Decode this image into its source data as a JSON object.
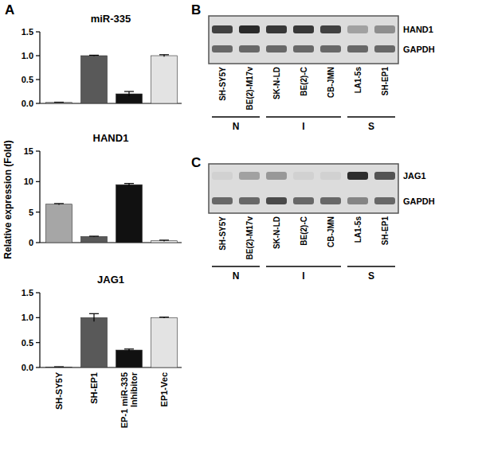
{
  "panel_labels": [
    "A",
    "B",
    "C"
  ],
  "chart_data": [
    {
      "type": "bar",
      "title": "miR-335",
      "categories": [
        null,
        null,
        null,
        null
      ],
      "values": [
        0.02,
        1.0,
        0.2,
        1.0
      ],
      "errors": [
        0.005,
        0.01,
        0.05,
        0.02
      ],
      "colors": [
        "#a6a6a6",
        "#595959",
        "#111111",
        "#e3e3e3"
      ],
      "ylim": [
        0,
        1.5
      ],
      "yticks": [
        {
          "value": 0,
          "label": "0.0"
        },
        0.5,
        {
          "value": 1,
          "label": "1.0"
        },
        1.5
      ],
      "grid": false
    },
    {
      "type": "bar",
      "title": "HAND1",
      "y_label": "Relative expression (Fold)",
      "categories": [
        null,
        null,
        null,
        null
      ],
      "values": [
        6.3,
        1.0,
        9.5,
        0.3
      ],
      "errors": [
        0.1,
        0.05,
        0.2,
        0.1
      ],
      "colors": [
        "#a6a6a6",
        "#595959",
        "#111111",
        "#e3e3e3"
      ],
      "ylim": [
        0,
        15
      ],
      "yticks": [
        0,
        5,
        10,
        15
      ],
      "grid": false
    },
    {
      "type": "bar",
      "title": "JAG1",
      "categories": [
        "SH-SY5Y",
        "SH-EP1",
        "EP-1 miR-335 Inhibitor",
        "EP1-Vec"
      ],
      "values": [
        0.01,
        1.0,
        0.35,
        1.0
      ],
      "errors": [
        0.005,
        0.08,
        0.02,
        0.01
      ],
      "colors": [
        "#a6a6a6",
        "#595959",
        "#111111",
        "#e3e3e3"
      ],
      "ylim": [
        0,
        1.5
      ],
      "yticks": [
        {
          "value": 0,
          "label": "0.0"
        },
        0.5,
        {
          "value": 1,
          "label": "1.0"
        },
        1.5
      ],
      "grid": false
    }
  ],
  "gels": [
    {
      "lanes": [
        "SH-SY5Y",
        "BE(2)-M17v",
        "SK-N-LD",
        "BE(2)-C",
        "CB-JMN",
        "LA1-5s",
        "SH-EP1"
      ],
      "bands": [
        {
          "label": "HAND1",
          "intensities": [
            0.8,
            0.92,
            0.85,
            0.85,
            0.8,
            0.3,
            0.4
          ]
        },
        {
          "label": "GAPDH",
          "intensities": [
            0.6,
            0.6,
            0.6,
            0.6,
            0.6,
            0.6,
            0.6
          ]
        }
      ],
      "groups": [
        {
          "label": "N",
          "lanes": [
            0,
            1
          ]
        },
        {
          "label": "I",
          "lanes": [
            2,
            3,
            4
          ]
        },
        {
          "label": "S",
          "lanes": [
            5,
            6
          ]
        }
      ]
    },
    {
      "lanes": [
        "SH-SY5Y",
        "BE(2)-M17v",
        "SK-N-LD",
        "BE(2)-C",
        "CB-JMN",
        "LA1-5s",
        "SH-EP1"
      ],
      "bands": [
        {
          "label": "JAG1",
          "intensities": [
            0.05,
            0.3,
            0.35,
            0.05,
            0.05,
            0.9,
            0.7
          ]
        },
        {
          "label": "GAPDH",
          "intensities": [
            0.6,
            0.6,
            0.75,
            0.6,
            0.6,
            0.45,
            0.6
          ]
        }
      ],
      "groups": [
        {
          "label": "N",
          "lanes": [
            0,
            1
          ]
        },
        {
          "label": "I",
          "lanes": [
            2,
            3,
            4
          ]
        },
        {
          "label": "S",
          "lanes": [
            5,
            6
          ]
        }
      ]
    }
  ]
}
